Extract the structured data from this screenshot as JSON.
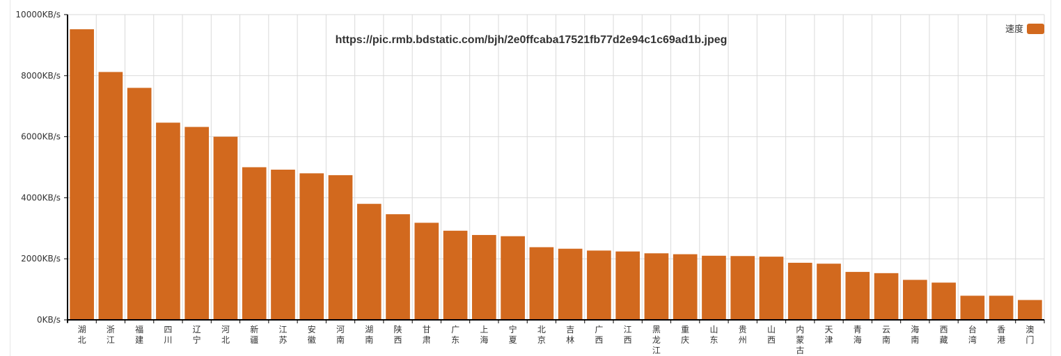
{
  "chart_data": {
    "type": "bar",
    "title": "https://pic.rmb.bdstatic.com/bjh/2e0ffcaba17521fb77d2e94c1c69ad1b.jpeg",
    "categories": [
      "湖北",
      "浙江",
      "福建",
      "四川",
      "辽宁",
      "河北",
      "新疆",
      "江苏",
      "安徽",
      "河南",
      "湖南",
      "陕西",
      "甘肃",
      "广东",
      "上海",
      "宁夏",
      "北京",
      "吉林",
      "广西",
      "江西",
      "黑龙江",
      "重庆",
      "山东",
      "贵州",
      "山西",
      "内蒙古",
      "天津",
      "青海",
      "云南",
      "海南",
      "西藏",
      "台湾",
      "香港",
      "澳门"
    ],
    "series": [
      {
        "name": "速度",
        "color": "#d2691e",
        "values": [
          9520,
          8120,
          7600,
          6460,
          6320,
          6000,
          5000,
          4920,
          4800,
          4740,
          3800,
          3460,
          3180,
          2920,
          2780,
          2740,
          2380,
          2330,
          2270,
          2240,
          2180,
          2150,
          2100,
          2090,
          2070,
          1870,
          1840,
          1570,
          1530,
          1310,
          1220,
          790,
          790,
          650
        ]
      }
    ],
    "xlabel": "",
    "ylabel": "",
    "ylim": [
      0,
      10000
    ],
    "yticks": [
      "0KB/s",
      "2000KB/s",
      "4000KB/s",
      "6000KB/s",
      "8000KB/s",
      "10000KB/s"
    ],
    "grid": true,
    "legend": "top-right"
  }
}
